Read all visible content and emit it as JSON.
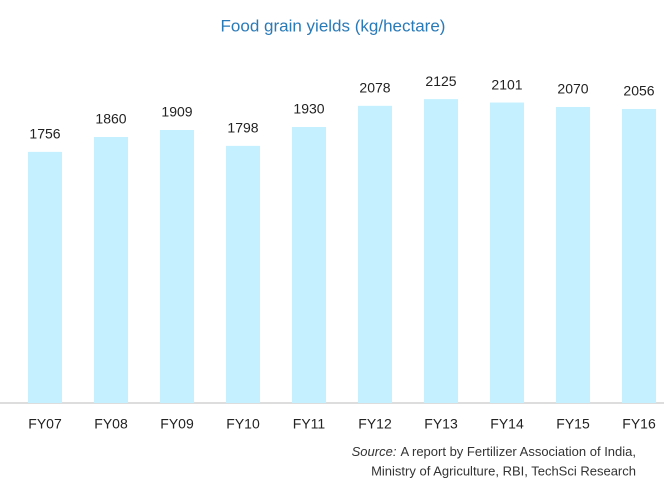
{
  "chart_data": {
    "type": "bar",
    "title": "Food grain yields (kg/hectare)",
    "categories": [
      "FY07",
      "FY08",
      "FY09",
      "FY10",
      "FY11",
      "FY12",
      "FY13",
      "FY14",
      "FY15",
      "FY16"
    ],
    "values": [
      1756,
      1860,
      1909,
      1798,
      1930,
      2078,
      2125,
      2101,
      2070,
      2056
    ],
    "color": "#c4f0ff",
    "source_label": "Source:",
    "source": [
      "A report by Fertilizer Association of India,",
      "Ministry of Agriculture, RBI, TechSci Research"
    ]
  }
}
